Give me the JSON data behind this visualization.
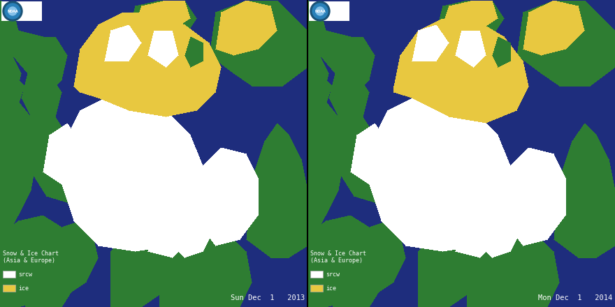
{
  "figsize": [
    8.8,
    4.4
  ],
  "dpi": 100,
  "background_color": "#1a237e",
  "ocean_color": "#1e2d7d",
  "land_color": "#2e7d32",
  "snow_color": "#ffffff",
  "ice_color": "#e8c840",
  "text_color": "#ffffff",
  "panels": [
    {
      "date_label": "Sun Dec  1   2013",
      "legend_title_line1": "Snow & Ice Chart",
      "legend_title_line2": "(Asia & Europe)",
      "legend_items": [
        {
          "color": "#ffffff",
          "label": "srcw"
        },
        {
          "color": "#e8c840",
          "label": "ice"
        }
      ]
    },
    {
      "date_label": "Mon Dec  1   2014",
      "legend_title_line1": "Snow & Ice Chart",
      "legend_title_line2": "(Asia & Europe)",
      "legend_items": [
        {
          "color": "#ffffff",
          "label": "srcw"
        },
        {
          "color": "#e8c840",
          "label": "ice"
        }
      ]
    }
  ],
  "noaa_logo": {
    "bg_color": "#ffffff",
    "outer_circle_color": "#1565c0",
    "inner_circle_color": "#64b5f6",
    "text": "NOAA",
    "text_color": "#ffffff"
  }
}
